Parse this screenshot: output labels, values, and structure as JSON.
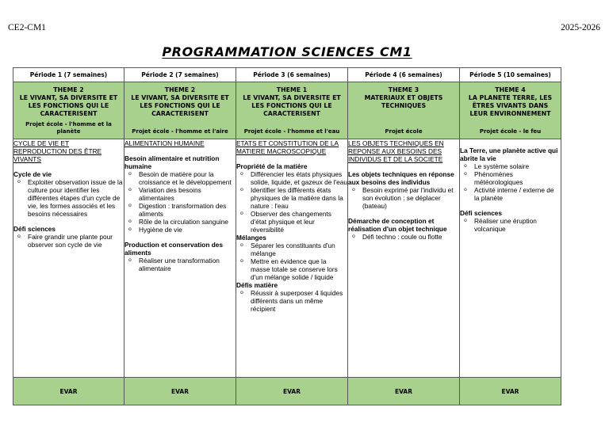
{
  "page": {
    "class_label": "CE2-CM1",
    "school_year": "2025-2026",
    "title": "PROGRAMMATION SCIENCES CM1"
  },
  "table": {
    "colors": {
      "green": "#a9d18e",
      "border": "#595959"
    },
    "columns": [
      {
        "period": "Période 1 (7 semaines)",
        "theme": {
          "label": "THEME 2",
          "name": "LE VIVANT, SA DIVERSITE ET LES FONCTIONS QUI LE CARACTERISENT",
          "project": "Projet école - l'homme et la planète"
        },
        "content": {
          "heading": "CYCLE DE VIE ET REPRODUCTION DES ÊTRE VIVANTS",
          "sections": [
            {
              "subtitle": "Cycle de vie",
              "spaced": true,
              "bullets": [
                "Exploiter observation issue de la culture pour identifier les différentes étapes d'un cycle de vie, les formes associés et les besoins nécessaires"
              ]
            },
            {
              "subtitle": "Défi sciences",
              "spaced": true,
              "bullets": [
                "Faire grandir une plante pour observer son cycle de vie"
              ]
            }
          ]
        },
        "footer": "EVAR"
      },
      {
        "period": "Période 2 (7 semaines)",
        "theme": {
          "label": "THEME 2",
          "name": "LE VIVANT, SA DIVERSITE ET LES FONCTIONS QUI LE CARACTERISENT",
          "project": "Projet école - l'homme et l'aire"
        },
        "content": {
          "heading": "ALIMENTATION HUMAINE",
          "sections": [
            {
              "subtitle": "Besoin alimentaire et nutrition humaine",
              "spaced": true,
              "bullets": [
                "Besoin de matière pour la croissance et le développement",
                "Variation des besoins alimentaires",
                "Digestion : transformation des aliments",
                "Rôle de la circulation sanguine",
                "Hygiène de vie"
              ]
            },
            {
              "subtitle": "Production et conservation des aliments",
              "spaced": true,
              "bullets": [
                "Réaliser une transformation alimentaire"
              ]
            }
          ]
        },
        "footer": "EVAR"
      },
      {
        "period": "Période 3 (6 semaines)",
        "theme": {
          "label": "THEME 1",
          "name": "LE VIVANT, SA DIVERSITE ET LES FONCTIONS QUI LE CARACTERISENT",
          "project": "Projet école - l'homme et l'eau"
        },
        "content": {
          "heading": "ETATS ET CONSTITUTION DE LA MATIERE MACROSCOPIQUE",
          "sections": [
            {
              "subtitle": "Propriété de la matière",
              "spaced": true,
              "bullets": [
                "Différencier les états physiques solide, liquide, et gazeux de l'eau",
                "Identifier les différents états physiques de la matière dans la nature : l'eau",
                "Observer des changements d'état physique et leur réversibilité"
              ]
            },
            {
              "subtitle": "Mélanges",
              "spaced": false,
              "bullets": [
                "Séparer les constituants d'un mélange",
                "Mettre en évidence que la masse totale se conserve lors d'un mélange solide / liquide"
              ]
            },
            {
              "subtitle": "Défis matière",
              "spaced": false,
              "bullets": [
                "Réussir à superposer 4 liquides différents dans un même récipient"
              ]
            }
          ]
        },
        "footer": "EVAR"
      },
      {
        "period": "Période 4 (6 semaines)",
        "theme": {
          "label": "THEME 3",
          "name": "MATERIAUX ET OBJETS TECHNIQUES",
          "project": "Projet école"
        },
        "content": {
          "heading": "LES OBJETS TECHNIQUES EN REPONSE AUX BESOINS DES INDIVIDUS ET DE LA SOCIETE",
          "sections": [
            {
              "subtitle": "Les objets techniques en réponse aux besoins des individus",
              "spaced": true,
              "bullets": [
                "Besoin exprimé par l'individu et son évolution : se déplacer (bateau)"
              ]
            },
            {
              "subtitle": "Démarche de conception et réalisation d'un objet technique",
              "spaced": true,
              "bullets": [
                "Défi techno : coule ou flotte"
              ]
            }
          ]
        },
        "footer": "EVAR"
      },
      {
        "period": "Période 5 (10 semaines)",
        "theme": {
          "label": "THEME 4",
          "name": "LA PLANETE TERRE, LES ÊTRES VIVANTS DANS LEUR ENVIRONNEMENT",
          "project": "Projet école - le feu"
        },
        "content": {
          "heading": "",
          "sections": [
            {
              "subtitle": "La Terre, une planète active qui abrite la vie",
              "spaced": true,
              "bullets": [
                "Le système solaire",
                "Phénomènes météorologiques",
                "Activité interne / externe de la planète"
              ]
            },
            {
              "subtitle": "Défi sciences",
              "spaced": true,
              "bullets": [
                "Réaliser une éruption volcanique"
              ]
            }
          ]
        },
        "footer": "EVAR"
      }
    ]
  }
}
